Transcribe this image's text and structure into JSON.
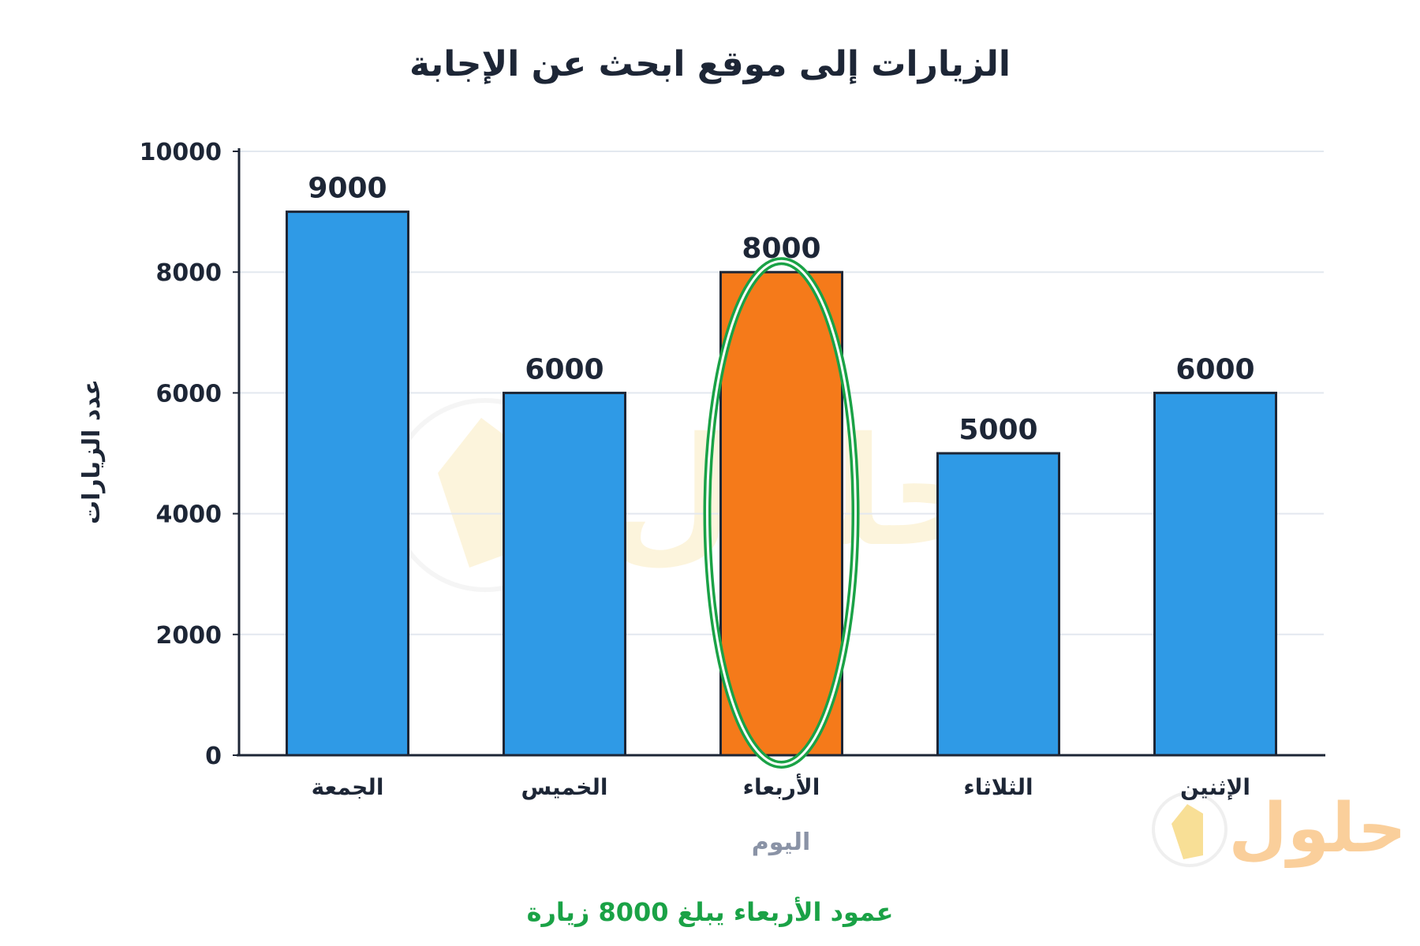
{
  "chart_data": {
    "type": "bar",
    "title": "الزيارات إلى موقع ابحث عن الإجابة",
    "xlabel": "اليوم",
    "ylabel": "عدد الزيارات",
    "categories": [
      "الجمعة",
      "الخميس",
      "الأربعاء",
      "الثلاثاء",
      "الإثنين"
    ],
    "values": [
      9000,
      6000,
      8000,
      5000,
      6000
    ],
    "highlight_index": 2,
    "ylim": [
      0,
      10000
    ],
    "yticks": [
      0,
      2000,
      4000,
      6000,
      8000,
      10000
    ],
    "grid": true,
    "legend": "none",
    "caption": "عمود الأربعاء يبلغ 8000 زيارة",
    "colors": {
      "bar": "#2f9ae6",
      "highlight": "#f57a1a",
      "outline": "#1d2636",
      "ring": "#1aa246",
      "grid": "#e3e8ef"
    }
  },
  "watermark": {
    "text": "حلول",
    "logo_icon": "book-badge-icon"
  }
}
